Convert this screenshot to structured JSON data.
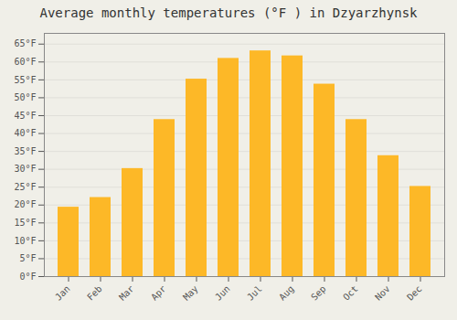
{
  "chart_data": {
    "type": "bar",
    "title": "Average monthly temperatures (°F ) in Dzyarzhynsk",
    "categories": [
      "Jan",
      "Feb",
      "Mar",
      "Apr",
      "May",
      "Jun",
      "Jul",
      "Aug",
      "Sep",
      "Oct",
      "Nov",
      "Dec"
    ],
    "values": [
      19.4,
      22.1,
      30.2,
      43.9,
      55.2,
      61.0,
      63.1,
      61.7,
      53.8,
      43.9,
      33.8,
      25.2
    ],
    "color": "#FDB827",
    "ylim": [
      0,
      68
    ],
    "yticks": [
      {
        "value": 0,
        "label": "0°F"
      },
      {
        "value": 5,
        "label": "5°F"
      },
      {
        "value": 10,
        "label": "10°F"
      },
      {
        "value": 15,
        "label": "15°F"
      },
      {
        "value": 20,
        "label": "20°F"
      },
      {
        "value": 25,
        "label": "25°F"
      },
      {
        "value": 30,
        "label": "30°F"
      },
      {
        "value": 35,
        "label": "35°F"
      },
      {
        "value": 40,
        "label": "40°F"
      },
      {
        "value": 45,
        "label": "45°F"
      },
      {
        "value": 50,
        "label": "50°F"
      },
      {
        "value": 55,
        "label": "55°F"
      },
      {
        "value": 60,
        "label": "60°F"
      },
      {
        "value": 65,
        "label": "65°F"
      }
    ],
    "grid": true
  }
}
